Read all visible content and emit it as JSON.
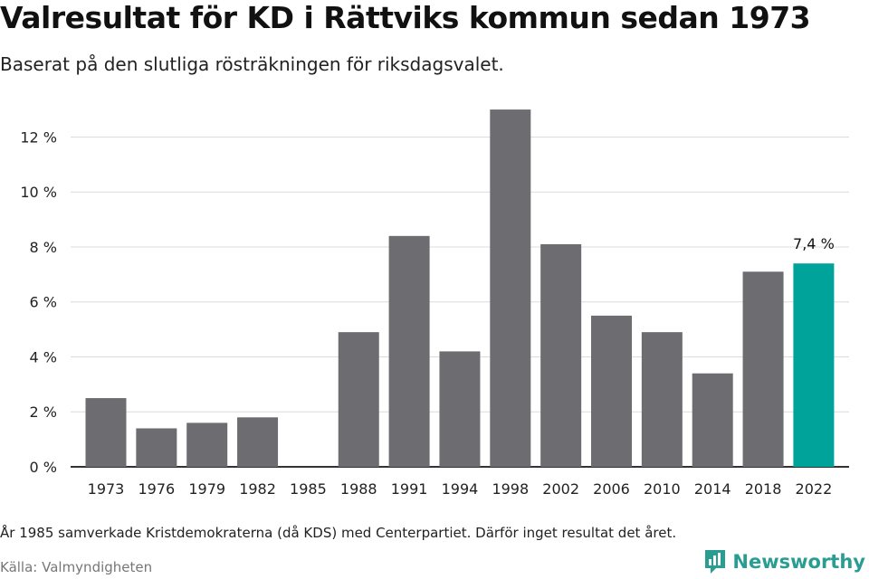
{
  "title": "Valresultat för KD i Rättviks kommun sedan 1973",
  "subtitle": "Baserat på den slutliga rösträkningen för riksdagsvalet.",
  "footnote": "År 1985 samverkade Kristdemokraterna (då KDS) med Centerpartiet. Därför inget resultat det året.",
  "source": "Källa: Valmyndigheten",
  "logo": {
    "text": "Newsworthy",
    "icon": "newsworthy-logo-icon"
  },
  "colors": {
    "bar": "#6d6c71",
    "highlight": "#00a39a",
    "grid": "#dcdcdc",
    "axis": "#333333"
  },
  "chart_data": {
    "type": "bar",
    "categories": [
      "1973",
      "1976",
      "1979",
      "1982",
      "1985",
      "1988",
      "1991",
      "1994",
      "1998",
      "2002",
      "2006",
      "2010",
      "2014",
      "2018",
      "2022"
    ],
    "values": [
      2.5,
      1.4,
      1.6,
      1.8,
      null,
      4.9,
      8.4,
      4.2,
      13.0,
      8.1,
      5.5,
      4.9,
      3.4,
      7.1,
      7.4
    ],
    "highlight_index": 14,
    "data_labels": [
      {
        "index": 14,
        "text": "7,4 %"
      }
    ],
    "yticks": [
      0,
      2,
      4,
      6,
      8,
      10,
      12
    ],
    "ytick_labels": [
      "0 %",
      "2 %",
      "4 %",
      "6 %",
      "8 %",
      "10 %",
      "12 %"
    ],
    "ylim": [
      0,
      13.2
    ],
    "grid": true
  }
}
